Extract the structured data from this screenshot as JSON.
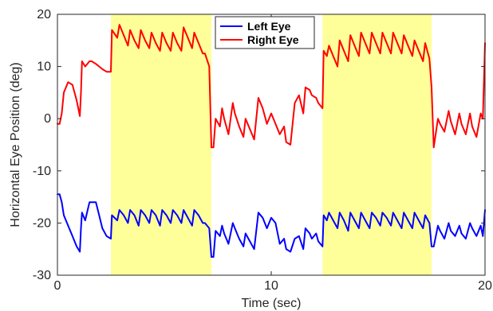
{
  "chart_data": {
    "type": "line",
    "title": "",
    "xlabel": "Time (sec)",
    "ylabel": "Horizontal Eye Position (deg)",
    "xlim": [
      0,
      20
    ],
    "ylim": [
      -30,
      20
    ],
    "xticks": [
      0,
      10,
      20
    ],
    "yticks": [
      -30,
      -20,
      -10,
      0,
      10,
      20
    ],
    "grid": false,
    "legend_position": "top-center",
    "shaded_intervals": [
      [
        2.5,
        7.2
      ],
      [
        12.4,
        17.5
      ]
    ],
    "shade_color": "#ffff99",
    "series": [
      {
        "name": "Left Eye",
        "color": "#0000ff",
        "x": [
          0,
          0.1,
          0.2,
          0.3,
          0.5,
          0.7,
          0.9,
          1.05,
          1.1,
          1.15,
          1.3,
          1.5,
          1.6,
          1.8,
          1.95,
          2.1,
          2.3,
          2.5,
          2.55,
          2.8,
          2.9,
          3.1,
          3.3,
          3.4,
          3.6,
          3.8,
          3.9,
          4.1,
          4.3,
          4.4,
          4.6,
          4.8,
          4.9,
          5.1,
          5.3,
          5.4,
          5.6,
          5.8,
          5.9,
          6.1,
          6.3,
          6.4,
          6.6,
          6.8,
          6.9,
          7.1,
          7.2,
          7.3,
          7.4,
          7.6,
          7.7,
          7.8,
          8.0,
          8.2,
          8.3,
          8.5,
          8.7,
          8.8,
          9.0,
          9.2,
          9.4,
          9.6,
          9.8,
          10.0,
          10.2,
          10.4,
          10.6,
          10.7,
          10.9,
          11.1,
          11.3,
          11.5,
          11.6,
          11.8,
          11.9,
          12.1,
          12.2,
          12.4,
          12.45,
          12.6,
          12.7,
          12.9,
          13.1,
          13.2,
          13.4,
          13.6,
          13.7,
          13.9,
          14.1,
          14.2,
          14.4,
          14.6,
          14.7,
          14.9,
          15.1,
          15.2,
          15.4,
          15.6,
          15.7,
          15.9,
          16.1,
          16.2,
          16.4,
          16.6,
          16.7,
          16.9,
          17.1,
          17.2,
          17.4,
          17.5,
          17.6,
          17.8,
          17.9,
          18.1,
          18.3,
          18.4,
          18.6,
          18.8,
          18.9,
          19.1,
          19.3,
          19.4,
          19.6,
          19.8,
          19.9,
          20.0
        ],
        "y": [
          -14.5,
          -14.5,
          -16,
          -18.5,
          -20.5,
          -22.5,
          -24.5,
          -25.5,
          -21,
          -18,
          -19.5,
          -16,
          -16,
          -16,
          -18.5,
          -21,
          -22.5,
          -23,
          -18.5,
          -19.5,
          -17.5,
          -18.5,
          -20,
          -17.5,
          -18.5,
          -20.5,
          -17.5,
          -18.5,
          -20,
          -17.5,
          -18.5,
          -20.5,
          -17.5,
          -18.5,
          -20,
          -17.5,
          -18.5,
          -20,
          -17.5,
          -19,
          -20.5,
          -17.5,
          -18.5,
          -20,
          -20,
          -21,
          -26.5,
          -26.5,
          -21.5,
          -22.5,
          -20.5,
          -22,
          -24,
          -20,
          -21,
          -23,
          -24.5,
          -22,
          -23.5,
          -25,
          -18,
          -19,
          -21,
          -19,
          -20,
          -24,
          -23,
          -25,
          -25.5,
          -23,
          -22.5,
          -25,
          -21,
          -22,
          -23,
          -22,
          -23.5,
          -24.5,
          -18.5,
          -19.5,
          -18,
          -19.5,
          -21,
          -18,
          -19.5,
          -21.5,
          -18,
          -19.5,
          -21,
          -18,
          -19.5,
          -21,
          -18,
          -19,
          -20.5,
          -18,
          -19,
          -20.5,
          -18,
          -19.5,
          -21,
          -18,
          -19.5,
          -21,
          -18,
          -19.5,
          -21,
          -18.5,
          -20,
          -24.5,
          -24.5,
          -20.5,
          -21.5,
          -23,
          -20,
          -21.5,
          -22.5,
          -20.5,
          -22,
          -23,
          -20,
          -21,
          -22.5,
          -20.5,
          -22.5,
          -17.5
        ]
      },
      {
        "name": "Right Eye",
        "color": "#ff0000",
        "x": [
          0,
          0.1,
          0.2,
          0.3,
          0.5,
          0.7,
          0.9,
          1.05,
          1.1,
          1.15,
          1.3,
          1.5,
          1.6,
          1.8,
          1.95,
          2.1,
          2.3,
          2.5,
          2.55,
          2.8,
          2.9,
          3.1,
          3.3,
          3.4,
          3.6,
          3.8,
          3.9,
          4.1,
          4.3,
          4.4,
          4.6,
          4.8,
          4.9,
          5.1,
          5.3,
          5.4,
          5.6,
          5.8,
          5.9,
          6.1,
          6.3,
          6.4,
          6.6,
          6.8,
          6.9,
          7.1,
          7.2,
          7.3,
          7.4,
          7.6,
          7.7,
          7.8,
          8.0,
          8.2,
          8.3,
          8.5,
          8.7,
          8.8,
          9.0,
          9.2,
          9.4,
          9.6,
          9.8,
          10.0,
          10.2,
          10.4,
          10.6,
          10.7,
          10.9,
          11.1,
          11.3,
          11.5,
          11.6,
          11.8,
          11.9,
          12.1,
          12.2,
          12.4,
          12.45,
          12.6,
          12.7,
          12.9,
          13.1,
          13.2,
          13.4,
          13.6,
          13.7,
          13.9,
          14.1,
          14.2,
          14.4,
          14.6,
          14.7,
          14.9,
          15.1,
          15.2,
          15.4,
          15.6,
          15.7,
          15.9,
          16.1,
          16.2,
          16.4,
          16.6,
          16.7,
          16.9,
          17.1,
          17.2,
          17.4,
          17.5,
          17.6,
          17.8,
          17.9,
          18.1,
          18.3,
          18.4,
          18.6,
          18.8,
          18.9,
          19.1,
          19.3,
          19.4,
          19.6,
          19.8,
          19.9,
          20.0
        ],
        "y": [
          -1,
          -1,
          1,
          5,
          7,
          6.5,
          3.5,
          0.5,
          5,
          11,
          10,
          11,
          11,
          10.5,
          10,
          9.5,
          9,
          9,
          17,
          15.5,
          18,
          16,
          14,
          17,
          15,
          13.5,
          17,
          15,
          13.5,
          16.5,
          14.5,
          13,
          16.5,
          14.5,
          13,
          16.5,
          14.5,
          13,
          17.5,
          15.5,
          13.5,
          16.5,
          14.5,
          12.5,
          12.5,
          10,
          -5.5,
          -5.5,
          0,
          -1.5,
          2,
          0,
          -3,
          3,
          1,
          -1.5,
          -3.5,
          0,
          -2,
          -4,
          4,
          2,
          -1,
          1,
          -1,
          -3,
          -1.5,
          -4.5,
          -5,
          3,
          4.5,
          1,
          6,
          5.5,
          4.5,
          4,
          3,
          2,
          13,
          12,
          14,
          12,
          10,
          15,
          13,
          11,
          16,
          14,
          12,
          16.5,
          14.5,
          12.5,
          16.5,
          14.5,
          12.5,
          16.5,
          14.5,
          12.5,
          16.5,
          14.5,
          12.5,
          16,
          14,
          12,
          15,
          13,
          11,
          14.5,
          11.5,
          6,
          -5.5,
          0,
          -1,
          -2.5,
          1.5,
          -0.5,
          -3,
          1,
          -1,
          -3,
          1,
          -1.5,
          -3.5,
          1,
          0,
          14.5
        ]
      }
    ]
  }
}
